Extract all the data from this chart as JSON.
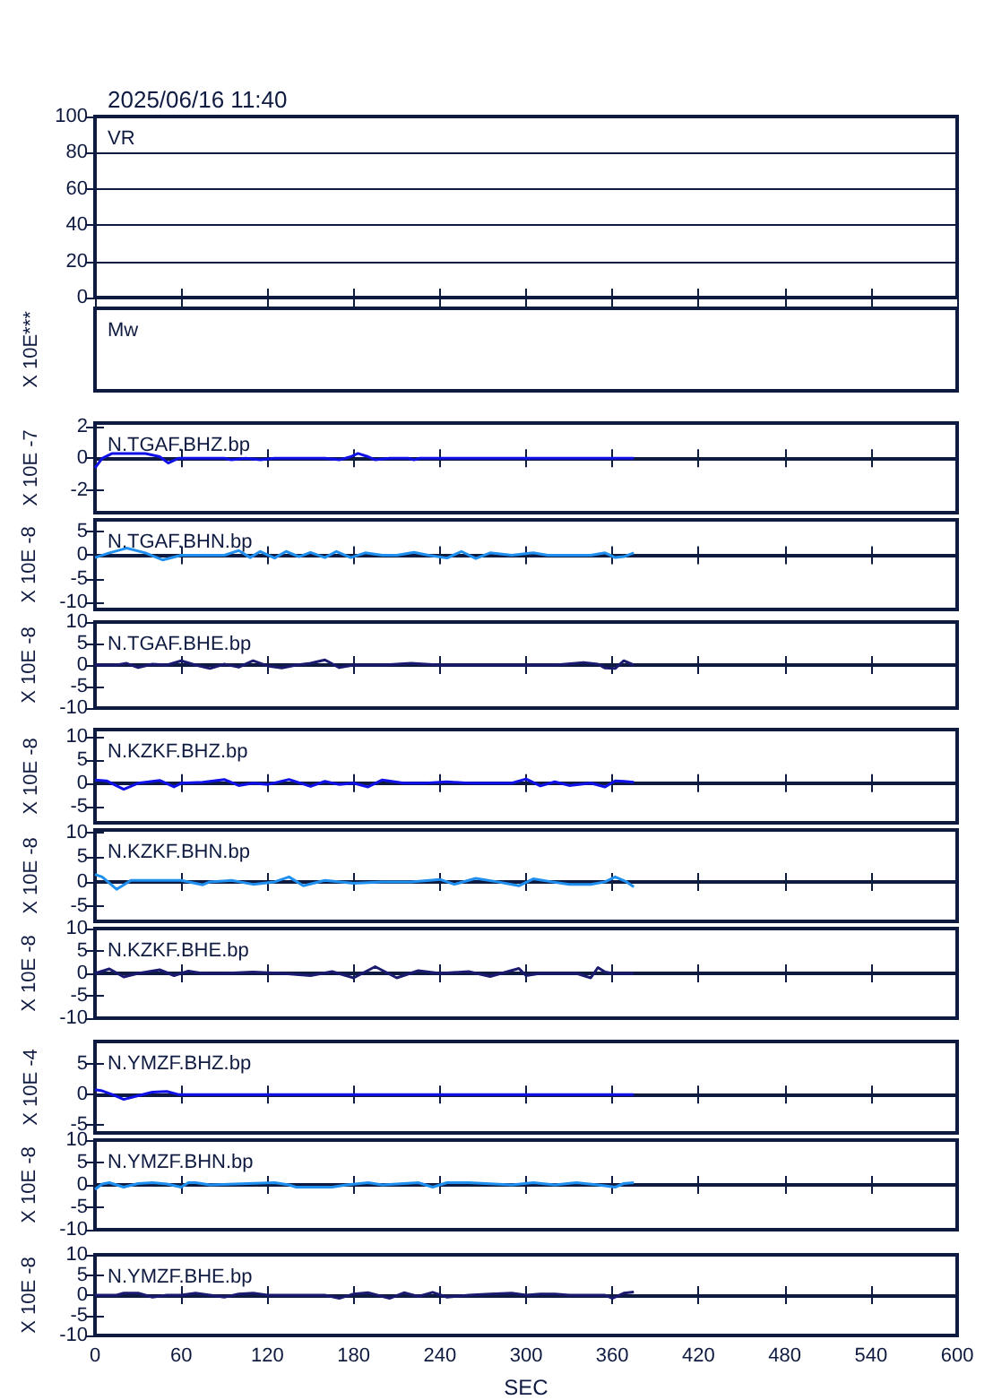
{
  "chart_data": [
    {
      "type": "line",
      "title": "VR",
      "annotations": [
        "2025/06/16 11:40"
      ],
      "xlim": [
        0,
        600
      ],
      "xticks": [
        0,
        60,
        120,
        180,
        240,
        300,
        360,
        420,
        480,
        540,
        600
      ],
      "ylim": [
        0,
        100
      ],
      "yticks": [
        0,
        20,
        40,
        60,
        80,
        100
      ],
      "grid": "y",
      "tick_labels": "y"
    },
    {
      "type": "other",
      "title": "Mw",
      "ylabel": "X 10E***"
    },
    {
      "type": "line",
      "title": "N.TGAF.BHZ.bp",
      "ylabel": "X 10E -7",
      "xlim": [
        0,
        600
      ],
      "xticks": [
        0,
        60,
        120,
        180,
        240,
        300,
        360,
        420,
        480,
        540,
        600
      ],
      "ylim": [
        -3.4,
        2.2
      ],
      "yticks": [
        -2,
        0,
        2
      ],
      "tick_labels": "y",
      "marker": "none",
      "line_style": "solid",
      "series": [
        {
          "color": "#1010e8",
          "x": [
            0,
            5,
            12,
            35,
            45,
            51,
            58,
            90,
            95,
            105,
            115,
            125,
            160,
            170,
            178,
            183,
            190,
            195,
            205,
            218,
            222,
            226,
            375
          ],
          "values": [
            -0.6,
            0,
            0.3,
            0.3,
            0.1,
            -0.3,
            0,
            0,
            -0.1,
            0,
            -0.1,
            0,
            0,
            -0.1,
            0.1,
            0.3,
            0.1,
            -0.1,
            0,
            0,
            -0.1,
            0,
            0
          ]
        }
      ]
    },
    {
      "type": "line",
      "title": "N.TGAF.BHN.bp",
      "ylabel": "X 10E -8",
      "xlim": [
        0,
        600
      ],
      "xticks": [
        0,
        60,
        120,
        180,
        240,
        300,
        360,
        420,
        480,
        540,
        600
      ],
      "ylim": [
        -11.5,
        7.5
      ],
      "yticks": [
        -10,
        -5,
        0,
        5
      ],
      "tick_labels": "y",
      "marker": "none",
      "line_style": "solid",
      "series": [
        {
          "color": "#2090f0",
          "x": [
            0,
            10,
            22,
            35,
            47,
            60,
            90,
            100,
            108,
            115,
            125,
            133,
            142,
            150,
            160,
            168,
            178,
            188,
            200,
            210,
            222,
            232,
            245,
            255,
            265,
            275,
            290,
            305,
            315,
            330,
            345,
            355,
            362,
            368,
            375
          ],
          "values": [
            -0.5,
            0.5,
            1.5,
            0.5,
            -1,
            0,
            0,
            1,
            -0.5,
            0.8,
            -0.6,
            0.8,
            -0.3,
            0.6,
            -0.5,
            0.8,
            -0.5,
            0.5,
            0,
            0,
            0.6,
            0,
            -0.6,
            0.8,
            -0.7,
            0.5,
            0,
            0.5,
            0,
            0,
            0,
            0.5,
            -0.5,
            -0.3,
            0.5
          ]
        }
      ]
    },
    {
      "type": "line",
      "title": "N.TGAF.BHE.bp",
      "ylabel": "X 10E -8",
      "xlim": [
        0,
        600
      ],
      "xticks": [
        0,
        60,
        120,
        180,
        240,
        300,
        360,
        420,
        480,
        540,
        600
      ],
      "ylim": [
        -10,
        10
      ],
      "yticks": [
        -10,
        -5,
        0,
        5,
        10
      ],
      "tick_labels": "y",
      "marker": "none",
      "line_style": "solid",
      "series": [
        {
          "color": "#1a1a70",
          "x": [
            0,
            15,
            22,
            30,
            40,
            50,
            60,
            70,
            80,
            90,
            100,
            110,
            120,
            130,
            140,
            150,
            160,
            170,
            180,
            200,
            220,
            240,
            260,
            280,
            300,
            320,
            340,
            350,
            355,
            362,
            368,
            375
          ],
          "values": [
            0,
            0,
            0.4,
            -0.6,
            0.2,
            0,
            1,
            0,
            -0.8,
            0.2,
            -0.5,
            1,
            -0.2,
            -0.7,
            0,
            0.4,
            1.2,
            -0.6,
            0,
            0,
            0.4,
            0,
            0,
            0,
            0,
            0,
            0.6,
            0.2,
            -0.7,
            -0.8,
            1,
            0
          ]
        }
      ]
    },
    {
      "type": "line",
      "title": "N.KZKF.BHZ.bp",
      "ylabel": "X 10E -8",
      "xlim": [
        0,
        600
      ],
      "xticks": [
        0,
        60,
        120,
        180,
        240,
        300,
        360,
        420,
        480,
        540,
        600
      ],
      "ylim": [
        -8.5,
        11.5
      ],
      "yticks": [
        -5,
        0,
        5,
        10
      ],
      "tick_labels": "y",
      "marker": "none",
      "line_style": "solid",
      "series": [
        {
          "color": "#1010e8",
          "x": [
            0,
            8,
            20,
            30,
            45,
            55,
            60,
            75,
            90,
            100,
            110,
            120,
            135,
            150,
            160,
            170,
            180,
            190,
            200,
            215,
            230,
            245,
            260,
            275,
            290,
            300,
            310,
            320,
            330,
            345,
            355,
            362,
            368,
            375
          ],
          "values": [
            0.7,
            0.5,
            -1.3,
            0,
            0.6,
            -0.8,
            0,
            0.2,
            0.8,
            -0.5,
            0,
            -0.3,
            0.8,
            -0.7,
            0.4,
            -0.3,
            0,
            -0.8,
            0.7,
            0,
            0,
            0.3,
            0,
            0,
            0,
            0.9,
            -0.6,
            0.3,
            -0.5,
            0,
            -0.8,
            0.5,
            0.4,
            0.2
          ]
        }
      ]
    },
    {
      "type": "line",
      "title": "N.KZKF.BHN.bp",
      "ylabel": "X 10E -8",
      "xlim": [
        0,
        600
      ],
      "xticks": [
        0,
        60,
        120,
        180,
        240,
        300,
        360,
        420,
        480,
        540,
        600
      ],
      "ylim": [
        -8,
        10.5
      ],
      "yticks": [
        -5,
        0,
        5,
        10
      ],
      "tick_labels": "y",
      "marker": "none",
      "line_style": "solid",
      "series": [
        {
          "color": "#2090f0",
          "x": [
            0,
            5,
            15,
            25,
            35,
            60,
            75,
            80,
            95,
            110,
            125,
            135,
            145,
            160,
            180,
            200,
            220,
            240,
            250,
            265,
            280,
            295,
            305,
            318,
            330,
            345,
            355,
            362,
            370,
            375
          ],
          "values": [
            1.5,
            1,
            -1.5,
            0.3,
            0.3,
            0.3,
            -0.6,
            0,
            0.3,
            -0.5,
            0,
            1,
            -0.8,
            0.3,
            -0.3,
            0,
            0,
            0.5,
            -0.5,
            0.7,
            0,
            -0.8,
            0.6,
            0,
            -0.5,
            -0.5,
            0,
            1,
            0,
            -1
          ]
        }
      ]
    },
    {
      "type": "line",
      "title": "N.KZKF.BHE.bp",
      "ylabel": "X 10E -8",
      "xlim": [
        0,
        600
      ],
      "xticks": [
        0,
        60,
        120,
        180,
        240,
        300,
        360,
        420,
        480,
        540,
        600
      ],
      "ylim": [
        -10,
        10
      ],
      "yticks": [
        -10,
        -5,
        0,
        5,
        10
      ],
      "tick_labels": "y",
      "marker": "none",
      "line_style": "solid",
      "series": [
        {
          "color": "#1a1a70",
          "x": [
            0,
            10,
            20,
            30,
            45,
            55,
            65,
            75,
            90,
            110,
            130,
            150,
            165,
            180,
            195,
            210,
            225,
            240,
            260,
            275,
            295,
            300,
            310,
            320,
            335,
            345,
            350,
            355,
            360,
            375
          ],
          "values": [
            0,
            1,
            -0.8,
            0,
            0.8,
            -0.5,
            0.5,
            0,
            0,
            0.3,
            0,
            -0.5,
            0.4,
            -1,
            1.5,
            -1,
            0.6,
            0,
            0.4,
            -0.7,
            1.1,
            -0.5,
            0,
            0,
            0,
            -1,
            1.3,
            0.3,
            0,
            0
          ]
        }
      ]
    },
    {
      "type": "line",
      "title": "N.YMZF.BHZ.bp",
      "ylabel": "X 10E -4",
      "xlim": [
        0,
        600
      ],
      "xticks": [
        0,
        60,
        120,
        180,
        240,
        300,
        360,
        420,
        480,
        540,
        600
      ],
      "ylim": [
        -6.3,
        8.7
      ],
      "yticks": [
        -5,
        0,
        5
      ],
      "tick_labels": "y",
      "marker": "none",
      "line_style": "solid",
      "series": [
        {
          "color": "#1010e8",
          "x": [
            0,
            5,
            12,
            20,
            30,
            40,
            50,
            58,
            375
          ],
          "values": [
            0.8,
            0.6,
            0,
            -0.8,
            -0.2,
            0.4,
            0.5,
            0,
            0
          ]
        }
      ]
    },
    {
      "type": "line",
      "title": "N.YMZF.BHN.bp",
      "ylabel": "X 10E -8",
      "xlim": [
        0,
        600
      ],
      "xticks": [
        0,
        60,
        120,
        180,
        240,
        300,
        360,
        420,
        480,
        540,
        600
      ],
      "ylim": [
        -10,
        10
      ],
      "yticks": [
        -10,
        -5,
        0,
        5,
        10
      ],
      "tick_labels": "y",
      "marker": "none",
      "line_style": "solid",
      "series": [
        {
          "color": "#2090f0",
          "x": [
            0,
            5,
            10,
            20,
            30,
            40,
            50,
            60,
            65,
            70,
            80,
            125,
            135,
            140,
            165,
            175,
            190,
            200,
            225,
            235,
            245,
            260,
            290,
            305,
            320,
            335,
            350,
            362,
            368,
            375
          ],
          "values": [
            -1,
            0.2,
            0.5,
            -0.5,
            0.3,
            0.5,
            0.2,
            -0.5,
            0.5,
            0.5,
            0,
            0.5,
            0,
            -0.5,
            -0.5,
            0,
            0.5,
            0,
            0.5,
            -0.5,
            0.5,
            0.5,
            0,
            0.5,
            0,
            0.5,
            0,
            -0.5,
            0.3,
            0.5
          ]
        }
      ]
    },
    {
      "type": "line",
      "title": "N.YMZF.BHE.bp",
      "ylabel": "X 10E -8",
      "xlabel": "SEC",
      "xlim": [
        0,
        600
      ],
      "xticks": [
        0,
        60,
        120,
        180,
        240,
        300,
        360,
        420,
        480,
        540,
        600
      ],
      "ylim": [
        -10,
        10
      ],
      "yticks": [
        -10,
        -5,
        0,
        5,
        10
      ],
      "marker": "none",
      "line_style": "solid",
      "series": [
        {
          "color": "#1a1a70",
          "x": [
            0,
            15,
            20,
            30,
            40,
            50,
            60,
            70,
            80,
            90,
            100,
            110,
            120,
            140,
            160,
            170,
            180,
            190,
            205,
            215,
            225,
            235,
            245,
            260,
            275,
            290,
            300,
            310,
            320,
            330,
            345,
            355,
            360,
            368,
            375
          ],
          "values": [
            0,
            0,
            0.5,
            0.5,
            -0.5,
            0,
            0,
            0.5,
            0,
            -0.5,
            0.3,
            0.5,
            0,
            0,
            0,
            -0.8,
            0.3,
            0.6,
            -0.8,
            0.6,
            -0.3,
            0.7,
            -0.5,
            0,
            0.3,
            0.5,
            0,
            0.3,
            0.3,
            0,
            0,
            0,
            -0.8,
            0.5,
            0.8
          ]
        }
      ]
    }
  ]
}
